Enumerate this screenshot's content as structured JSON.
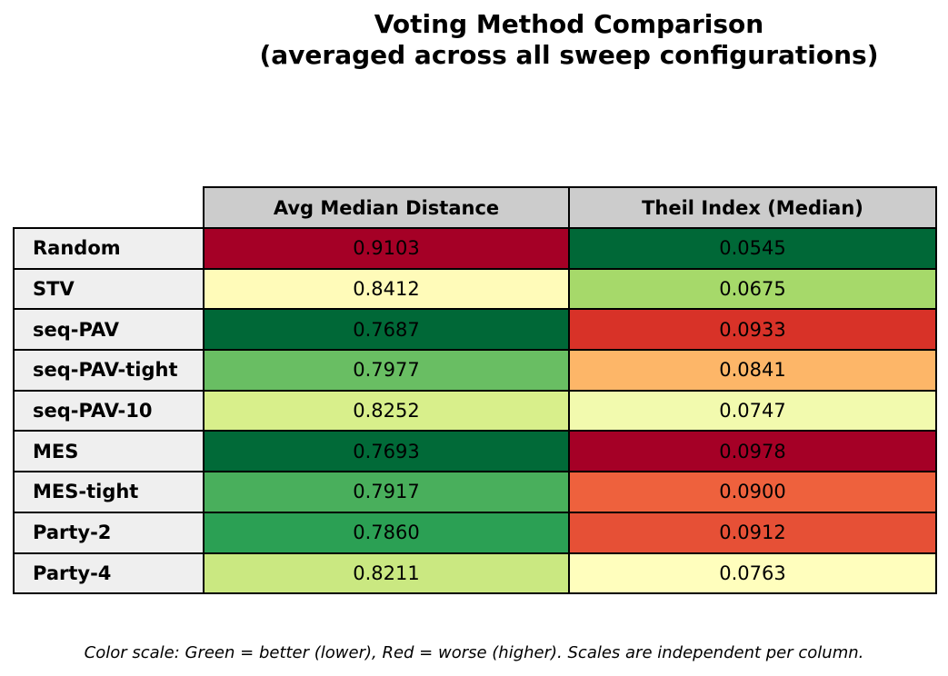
{
  "title": {
    "line1": "Voting Method Comparison",
    "line2": "(averaged across all sweep configurations)"
  },
  "footnote": "Color scale: Green = better (lower), Red = worse (higher). Scales are independent per column.",
  "colors": {
    "header_bg": "#cccccc",
    "label_bg": "#efefef",
    "border": "#000000",
    "background": "#ffffff",
    "text": "#000000"
  },
  "table": {
    "columns": [
      "Avg Median Distance",
      "Theil Index (Median)"
    ],
    "rows": [
      {
        "label": "Random",
        "cells": [
          {
            "value": "0.9103",
            "bg": "#a50026"
          },
          {
            "value": "0.0545",
            "bg": "#006837"
          }
        ]
      },
      {
        "label": "STV",
        "cells": [
          {
            "value": "0.8412",
            "bg": "#fffbb9"
          },
          {
            "value": "0.0675",
            "bg": "#a6d96a"
          }
        ]
      },
      {
        "label": "seq-PAV",
        "cells": [
          {
            "value": "0.7687",
            "bg": "#006837"
          },
          {
            "value": "0.0933",
            "bg": "#d83228"
          }
        ]
      },
      {
        "label": "seq-PAV-tight",
        "cells": [
          {
            "value": "0.7977",
            "bg": "#69be63"
          },
          {
            "value": "0.0841",
            "bg": "#fdb668"
          }
        ]
      },
      {
        "label": "seq-PAV-10",
        "cells": [
          {
            "value": "0.8252",
            "bg": "#d8ef8b"
          },
          {
            "value": "0.0747",
            "bg": "#f2faae"
          }
        ]
      },
      {
        "label": "MES",
        "cells": [
          {
            "value": "0.7693",
            "bg": "#016a38"
          },
          {
            "value": "0.0978",
            "bg": "#a50026"
          }
        ]
      },
      {
        "label": "MES-tight",
        "cells": [
          {
            "value": "0.7917",
            "bg": "#49af5c"
          },
          {
            "value": "0.0900",
            "bg": "#ee613d"
          }
        ]
      },
      {
        "label": "Party-2",
        "cells": [
          {
            "value": "0.7860",
            "bg": "#2ba054"
          },
          {
            "value": "0.0912",
            "bg": "#e65036"
          }
        ]
      },
      {
        "label": "Party-4",
        "cells": [
          {
            "value": "0.8211",
            "bg": "#cae881"
          },
          {
            "value": "0.0763",
            "bg": "#fffebd"
          }
        ]
      }
    ]
  },
  "chart_data": {
    "type": "heatmap",
    "title": "Voting Method Comparison (averaged across all sweep configurations)",
    "rows": [
      "Random",
      "STV",
      "seq-PAV",
      "seq-PAV-tight",
      "seq-PAV-10",
      "MES",
      "MES-tight",
      "Party-2",
      "Party-4"
    ],
    "columns": [
      "Avg Median Distance",
      "Theil Index (Median)"
    ],
    "values": [
      [
        0.9103,
        0.0545
      ],
      [
        0.8412,
        0.0675
      ],
      [
        0.7687,
        0.0933
      ],
      [
        0.7977,
        0.0841
      ],
      [
        0.8252,
        0.0747
      ],
      [
        0.7693,
        0.0978
      ],
      [
        0.7917,
        0.09
      ],
      [
        0.786,
        0.0912
      ],
      [
        0.8211,
        0.0763
      ]
    ],
    "colormap": "RdYlGn (green = lower/better, red = higher/worse), normalized independently per column",
    "column_ranges": [
      {
        "column": "Avg Median Distance",
        "min": 0.7687,
        "max": 0.9103
      },
      {
        "column": "Theil Index (Median)",
        "min": 0.0545,
        "max": 0.0978
      }
    ],
    "annotation": "Color scale: Green = better (lower), Red = worse (higher). Scales are independent per column.",
    "legend_position": "none",
    "grid": "table borders, 2px black"
  }
}
